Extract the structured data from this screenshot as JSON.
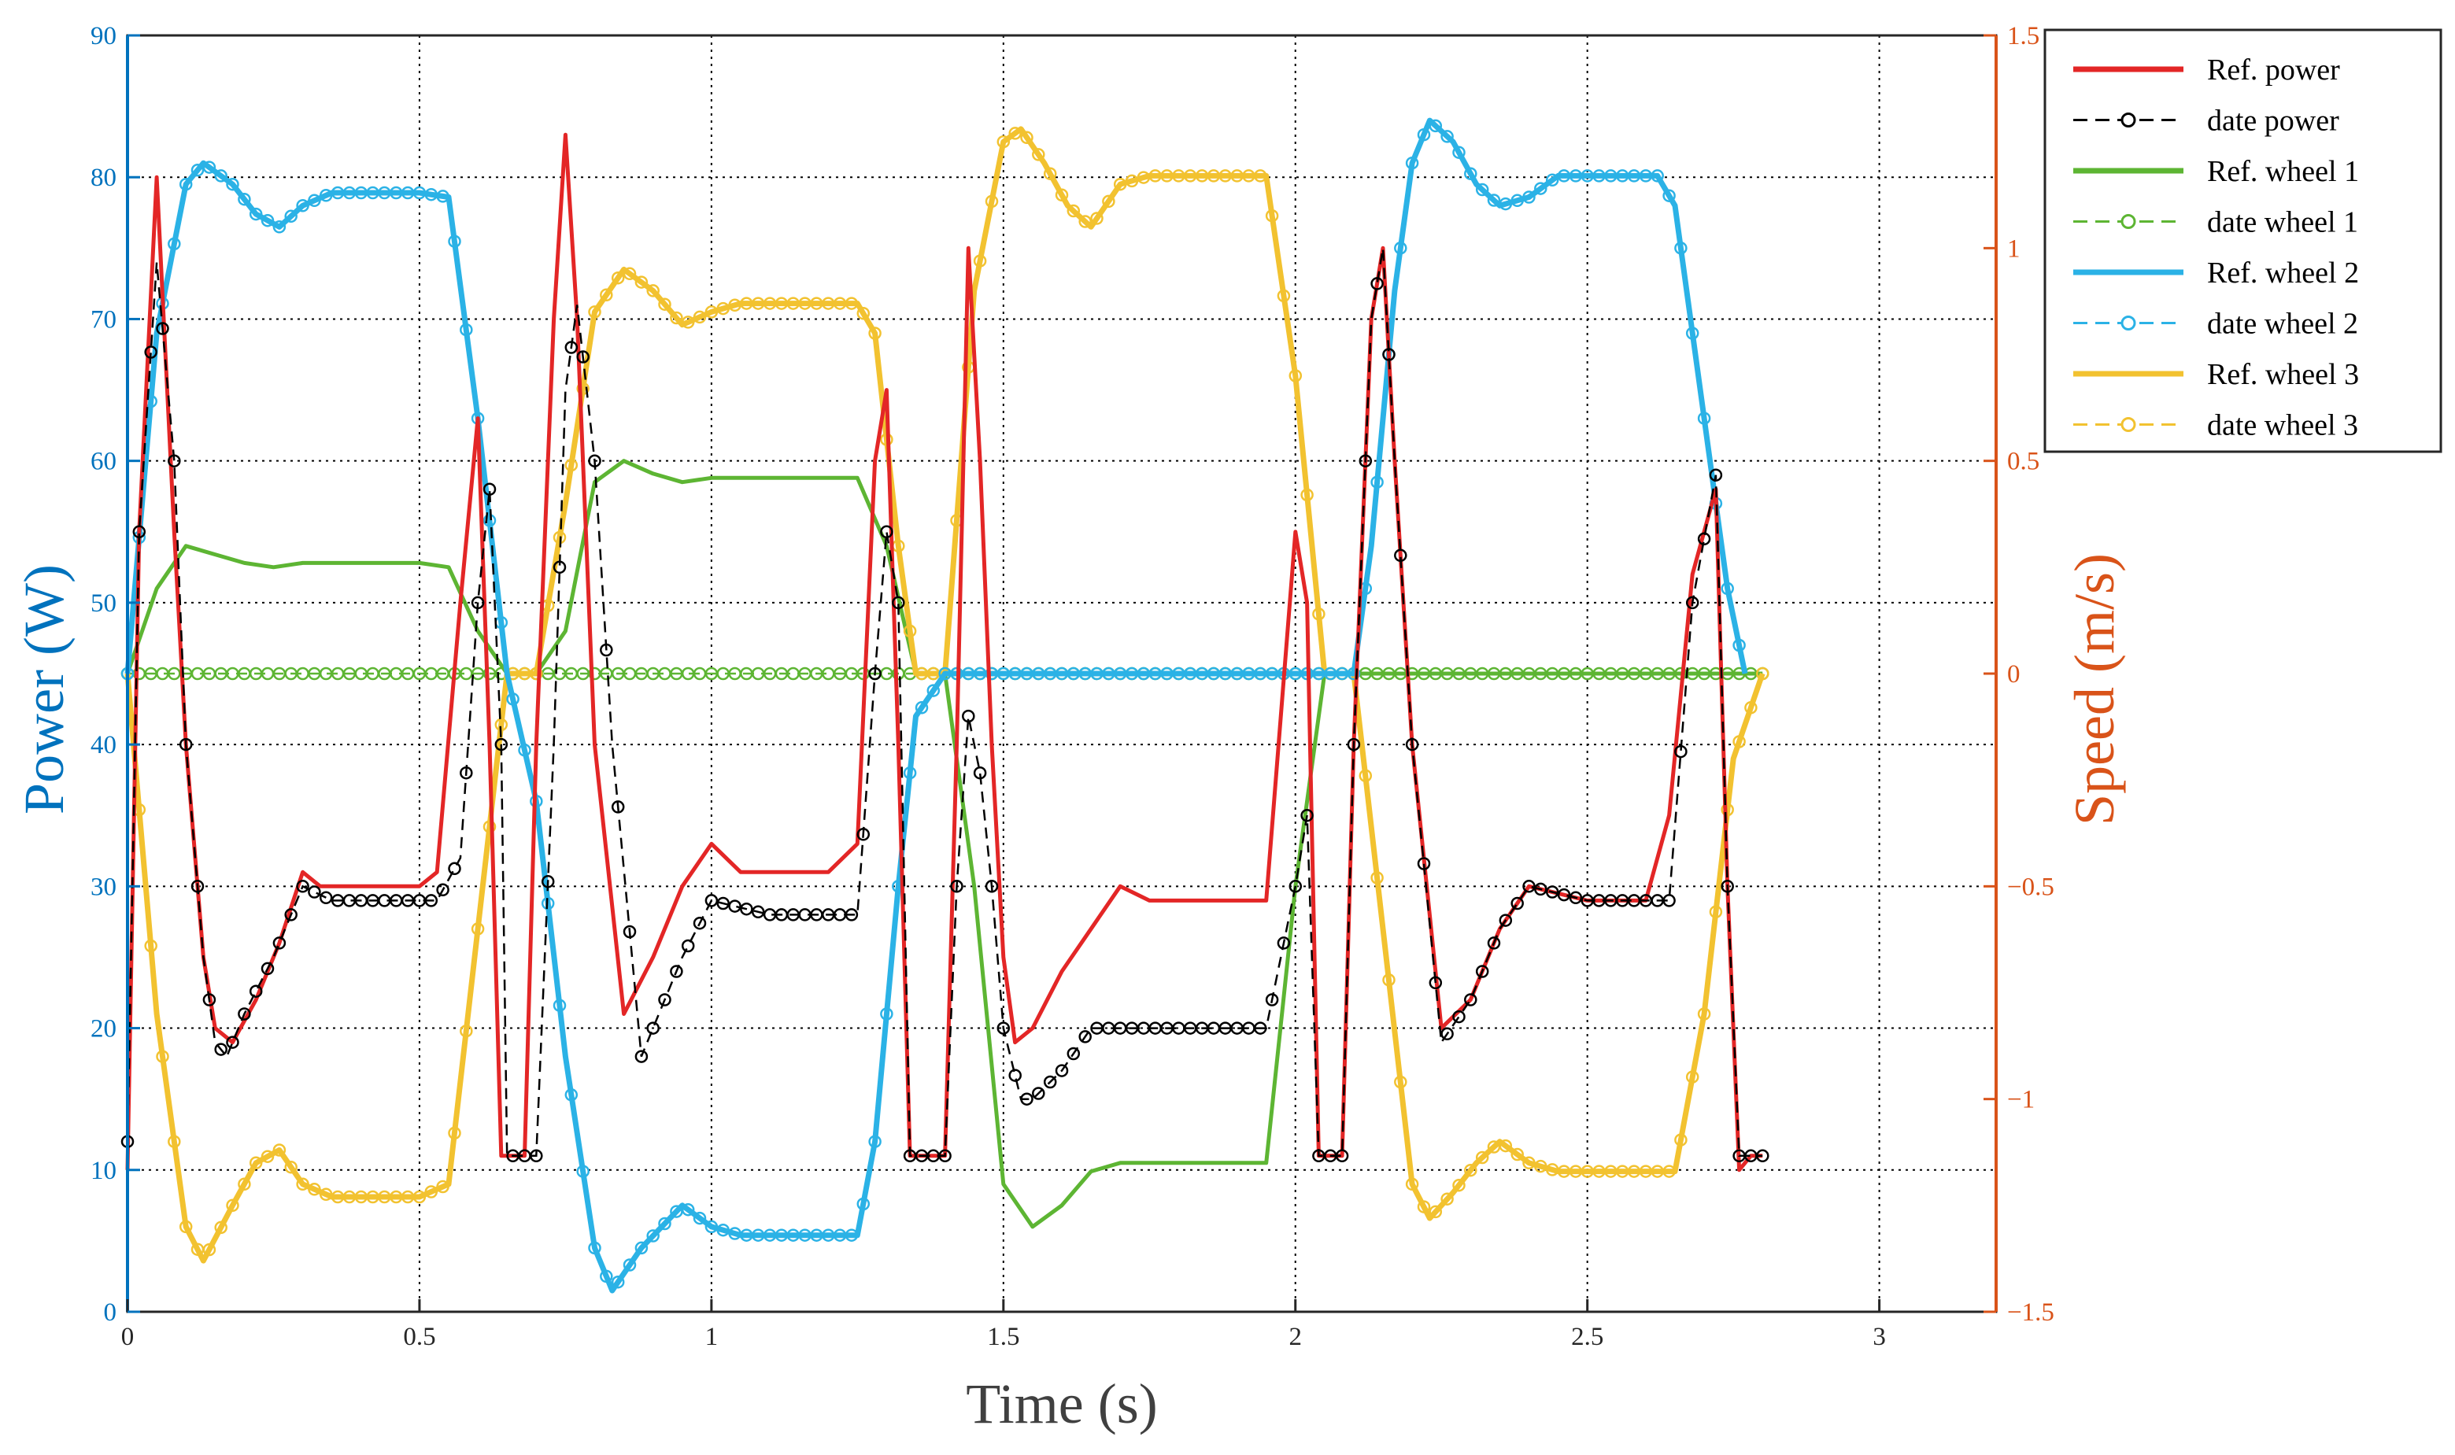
{
  "chart_data": {
    "type": "line",
    "title": "",
    "xlabel": "Time (s)",
    "ylabel_left": "Power (W)",
    "ylabel_right": "Speed (m/s)",
    "xlim": [
      0,
      3.2
    ],
    "ylim_left": [
      0,
      90
    ],
    "ylim_right": [
      -1.5,
      1.5
    ],
    "x_ticks": [
      0,
      0.5,
      1,
      1.5,
      2,
      2.5,
      3
    ],
    "x_tick_labels": [
      "0",
      "0.5",
      "1",
      "1.5",
      "2",
      "2.5",
      "3"
    ],
    "y_left_ticks": [
      0,
      10,
      20,
      30,
      40,
      50,
      60,
      70,
      80,
      90
    ],
    "y_left_tick_labels": [
      "0",
      "10",
      "20",
      "30",
      "40",
      "50",
      "60",
      "70",
      "80",
      "90"
    ],
    "y_right_ticks": [
      -1.5,
      -1,
      -0.5,
      0,
      0.5,
      1,
      1.5
    ],
    "y_right_tick_labels": [
      "−1.5",
      "−1",
      "−0.5",
      "0",
      "0.5",
      "1",
      "1.5"
    ],
    "grid": true,
    "legend_position": "top-right",
    "colors": {
      "left_axis": "#0072BD",
      "right_axis": "#D95319",
      "power_ref": "#E32626",
      "power_data": "#000000",
      "wheel1": "#5DB533",
      "wheel2": "#2BB2E6",
      "wheel3": "#F2C230",
      "grid": "#000000",
      "axis": "#262626"
    },
    "legend": [
      {
        "label": "Ref. power",
        "series": "power_ref",
        "style": "solid"
      },
      {
        "label": "date power",
        "series": "power_data",
        "style": "dashed-marker"
      },
      {
        "label": "Ref. wheel 1",
        "series": "wheel1_ref",
        "style": "solid"
      },
      {
        "label": "date wheel 1",
        "series": "wheel1_data",
        "style": "dashed-marker"
      },
      {
        "label": "Ref. wheel 2",
        "series": "wheel2_ref",
        "style": "solid"
      },
      {
        "label": "date wheel 2",
        "series": "wheel2_data",
        "style": "dashed-marker"
      },
      {
        "label": "Ref. wheel 3",
        "series": "wheel3_ref",
        "style": "solid"
      },
      {
        "label": "date wheel 3",
        "series": "wheel3_data",
        "style": "dashed-marker"
      }
    ],
    "series": [
      {
        "name": "Ref. power",
        "id": "power_ref",
        "axis": "left",
        "color_key": "power_ref",
        "style": "solid",
        "x": [
          0.0,
          0.02,
          0.05,
          0.08,
          0.1,
          0.13,
          0.15,
          0.18,
          0.22,
          0.26,
          0.3,
          0.33,
          0.4,
          0.5,
          0.53,
          0.57,
          0.6,
          0.62,
          0.64,
          0.65,
          0.68,
          0.7,
          0.73,
          0.75,
          0.77,
          0.8,
          0.85,
          0.9,
          0.95,
          1.0,
          1.05,
          1.1,
          1.2,
          1.25,
          1.28,
          1.3,
          1.32,
          1.34,
          1.35,
          1.4,
          1.42,
          1.44,
          1.46,
          1.48,
          1.5,
          1.52,
          1.55,
          1.6,
          1.65,
          1.7,
          1.75,
          1.8,
          1.9,
          1.95,
          2.0,
          2.02,
          2.04,
          2.05,
          2.08,
          2.1,
          2.13,
          2.15,
          2.17,
          2.2,
          2.25,
          2.3,
          2.35,
          2.4,
          2.5,
          2.6,
          2.64,
          2.68,
          2.72,
          2.74,
          2.76,
          2.78,
          2.8
        ],
        "y": [
          10,
          55,
          80,
          55,
          40,
          25,
          20,
          19,
          22,
          26,
          31,
          30,
          30,
          30,
          31,
          50,
          63,
          40,
          11,
          11,
          11,
          40,
          70,
          83,
          70,
          40,
          21,
          25,
          30,
          33,
          31,
          31,
          31,
          33,
          60,
          65,
          40,
          11,
          11,
          11,
          40,
          75,
          60,
          40,
          25,
          19,
          20,
          24,
          27,
          30,
          29,
          29,
          29,
          29,
          55,
          50,
          11,
          11,
          11,
          40,
          70,
          75,
          60,
          40,
          20,
          22,
          27,
          30,
          29,
          29,
          35,
          52,
          58,
          30,
          10,
          11,
          11
        ]
      },
      {
        "name": "date power",
        "id": "power_data",
        "axis": "left",
        "color_key": "power_data",
        "style": "dashed-marker",
        "x": [
          0.0,
          0.02,
          0.05,
          0.08,
          0.1,
          0.13,
          0.15,
          0.17,
          0.2,
          0.25,
          0.3,
          0.35,
          0.45,
          0.53,
          0.57,
          0.6,
          0.62,
          0.64,
          0.65,
          0.68,
          0.7,
          0.73,
          0.75,
          0.77,
          0.8,
          0.83,
          0.88,
          0.95,
          1.0,
          1.1,
          1.25,
          1.28,
          1.3,
          1.32,
          1.34,
          1.35,
          1.4,
          1.42,
          1.44,
          1.46,
          1.48,
          1.5,
          1.53,
          1.55,
          1.6,
          1.65,
          1.7,
          1.8,
          1.95,
          2.0,
          2.02,
          2.04,
          2.05,
          2.08,
          2.1,
          2.13,
          2.15,
          2.17,
          2.2,
          2.25,
          2.3,
          2.35,
          2.4,
          2.5,
          2.64,
          2.68,
          2.72,
          2.74,
          2.76,
          2.78,
          2.8
        ],
        "y": [
          12,
          55,
          74,
          60,
          40,
          25,
          19,
          18,
          21,
          25,
          30,
          29,
          29,
          29,
          32,
          50,
          58,
          40,
          11,
          11,
          11,
          40,
          65,
          71,
          60,
          40,
          18,
          25,
          29,
          28,
          28,
          45,
          55,
          50,
          11,
          11,
          11,
          30,
          42,
          38,
          30,
          20,
          15,
          15,
          17,
          20,
          20,
          20,
          20,
          30,
          35,
          11,
          11,
          11,
          40,
          70,
          75,
          60,
          40,
          19,
          22,
          27,
          30,
          29,
          29,
          50,
          59,
          30,
          11,
          11,
          11
        ]
      },
      {
        "name": "Ref. wheel 1",
        "id": "wheel1_ref",
        "axis": "right",
        "color_key": "wheel1",
        "style": "solid",
        "x": [
          0.0,
          0.05,
          0.1,
          0.15,
          0.2,
          0.25,
          0.3,
          0.35,
          0.5,
          0.55,
          0.6,
          0.65,
          0.7,
          0.75,
          0.8,
          0.85,
          0.9,
          0.95,
          1.0,
          1.25,
          1.3,
          1.35,
          1.4,
          1.45,
          1.5,
          1.55,
          1.6,
          1.65,
          1.7,
          1.75,
          1.8,
          1.95,
          2.0,
          2.05,
          2.1,
          2.5,
          2.8
        ],
        "y": [
          0,
          0.2,
          0.3,
          0.28,
          0.26,
          0.25,
          0.26,
          0.26,
          0.26,
          0.25,
          0.1,
          0,
          0,
          0.1,
          0.45,
          0.5,
          0.47,
          0.45,
          0.46,
          0.46,
          0.3,
          0,
          0,
          -0.5,
          -1.2,
          -1.3,
          -1.25,
          -1.17,
          -1.15,
          -1.15,
          -1.15,
          -1.15,
          -0.5,
          0,
          0,
          0,
          0
        ]
      },
      {
        "name": "date wheel 1",
        "id": "wheel1_data",
        "axis": "right",
        "color_key": "wheel1",
        "style": "dashed-marker",
        "x": [
          0.0,
          2.8
        ],
        "y": [
          0,
          0
        ]
      },
      {
        "name": "Ref. wheel 2",
        "id": "wheel2_ref",
        "axis": "right",
        "color_key": "wheel2",
        "style": "solid",
        "x": [
          0.0,
          0.05,
          0.1,
          0.13,
          0.18,
          0.22,
          0.26,
          0.3,
          0.35,
          0.5,
          0.55,
          0.6,
          0.65,
          0.7,
          0.75,
          0.8,
          0.83,
          0.88,
          0.95,
          1.0,
          1.05,
          1.25,
          1.28,
          1.32,
          1.35,
          1.4,
          2.1,
          2.13,
          2.17,
          2.2,
          2.23,
          2.27,
          2.31,
          2.35,
          2.4,
          2.45,
          2.62,
          2.65,
          2.7,
          2.74,
          2.77
        ],
        "y": [
          0,
          0.8,
          1.15,
          1.2,
          1.15,
          1.08,
          1.05,
          1.1,
          1.13,
          1.13,
          1.12,
          0.6,
          0,
          -0.3,
          -0.9,
          -1.35,
          -1.45,
          -1.35,
          -1.25,
          -1.3,
          -1.32,
          -1.32,
          -1.1,
          -0.5,
          -0.1,
          0,
          0,
          0.3,
          0.9,
          1.2,
          1.3,
          1.25,
          1.15,
          1.1,
          1.12,
          1.17,
          1.17,
          1.1,
          0.6,
          0.2,
          0
        ]
      },
      {
        "name": "date wheel 2",
        "id": "wheel2_data",
        "axis": "right",
        "color_key": "wheel2",
        "style": "dashed-marker",
        "x": [
          0.0,
          0.05,
          0.1,
          0.13,
          0.18,
          0.22,
          0.26,
          0.3,
          0.35,
          0.5,
          0.55,
          0.6,
          0.65,
          0.7,
          0.75,
          0.8,
          0.83,
          0.88,
          0.95,
          1.0,
          1.05,
          1.25,
          1.28,
          1.32,
          1.35,
          1.4,
          2.1,
          2.13,
          2.17,
          2.2,
          2.23,
          2.27,
          2.31,
          2.35,
          2.4,
          2.45,
          2.62,
          2.65,
          2.7,
          2.74,
          2.77
        ],
        "y": [
          0,
          0.8,
          1.15,
          1.2,
          1.15,
          1.08,
          1.05,
          1.1,
          1.13,
          1.13,
          1.12,
          0.6,
          0,
          -0.3,
          -0.9,
          -1.35,
          -1.45,
          -1.35,
          -1.25,
          -1.3,
          -1.32,
          -1.32,
          -1.1,
          -0.5,
          -0.1,
          0,
          0,
          0.3,
          0.9,
          1.2,
          1.3,
          1.25,
          1.15,
          1.1,
          1.12,
          1.17,
          1.17,
          1.1,
          0.6,
          0.2,
          0
        ]
      },
      {
        "name": "Ref. wheel 3",
        "id": "wheel3_ref",
        "axis": "right",
        "color_key": "wheel3",
        "style": "solid",
        "x": [
          0.0,
          0.05,
          0.1,
          0.13,
          0.18,
          0.22,
          0.26,
          0.3,
          0.35,
          0.5,
          0.55,
          0.6,
          0.65,
          0.7,
          0.75,
          0.8,
          0.85,
          0.9,
          0.95,
          1.0,
          1.05,
          1.25,
          1.28,
          1.32,
          1.35,
          1.4,
          1.45,
          1.5,
          1.53,
          1.57,
          1.61,
          1.65,
          1.7,
          1.75,
          1.95,
          2.0,
          2.05,
          2.1,
          2.15,
          2.2,
          2.23,
          2.27,
          2.31,
          2.35,
          2.4,
          2.45,
          2.65,
          2.7,
          2.75,
          2.8
        ],
        "y": [
          0,
          -0.8,
          -1.3,
          -1.38,
          -1.25,
          -1.15,
          -1.12,
          -1.2,
          -1.23,
          -1.23,
          -1.2,
          -0.6,
          0,
          0,
          0.4,
          0.85,
          0.95,
          0.9,
          0.82,
          0.85,
          0.87,
          0.87,
          0.8,
          0.3,
          0,
          0,
          0.9,
          1.25,
          1.28,
          1.2,
          1.1,
          1.05,
          1.15,
          1.17,
          1.17,
          0.7,
          0,
          0,
          -0.6,
          -1.2,
          -1.28,
          -1.22,
          -1.15,
          -1.1,
          -1.15,
          -1.17,
          -1.17,
          -0.8,
          -0.2,
          0
        ]
      },
      {
        "name": "date wheel 3",
        "id": "wheel3_data",
        "axis": "right",
        "color_key": "wheel3",
        "style": "dashed-marker",
        "x": [
          0.0,
          0.05,
          0.1,
          0.13,
          0.18,
          0.22,
          0.26,
          0.3,
          0.35,
          0.5,
          0.55,
          0.6,
          0.65,
          0.7,
          0.75,
          0.8,
          0.85,
          0.9,
          0.95,
          1.0,
          1.05,
          1.25,
          1.28,
          1.32,
          1.35,
          1.4,
          1.45,
          1.5,
          1.53,
          1.57,
          1.61,
          1.65,
          1.7,
          1.75,
          1.95,
          2.0,
          2.05,
          2.1,
          2.15,
          2.2,
          2.23,
          2.27,
          2.31,
          2.35,
          2.4,
          2.45,
          2.65,
          2.7,
          2.75,
          2.8
        ],
        "y": [
          0,
          -0.8,
          -1.3,
          -1.38,
          -1.25,
          -1.15,
          -1.12,
          -1.2,
          -1.23,
          -1.23,
          -1.2,
          -0.6,
          0,
          0,
          0.4,
          0.85,
          0.95,
          0.9,
          0.82,
          0.85,
          0.87,
          0.87,
          0.8,
          0.3,
          0,
          0,
          0.9,
          1.25,
          1.28,
          1.2,
          1.1,
          1.05,
          1.15,
          1.17,
          1.17,
          0.7,
          0,
          0,
          -0.6,
          -1.2,
          -1.28,
          -1.22,
          -1.15,
          -1.1,
          -1.15,
          -1.17,
          -1.17,
          -0.8,
          -0.2,
          0
        ]
      }
    ]
  }
}
